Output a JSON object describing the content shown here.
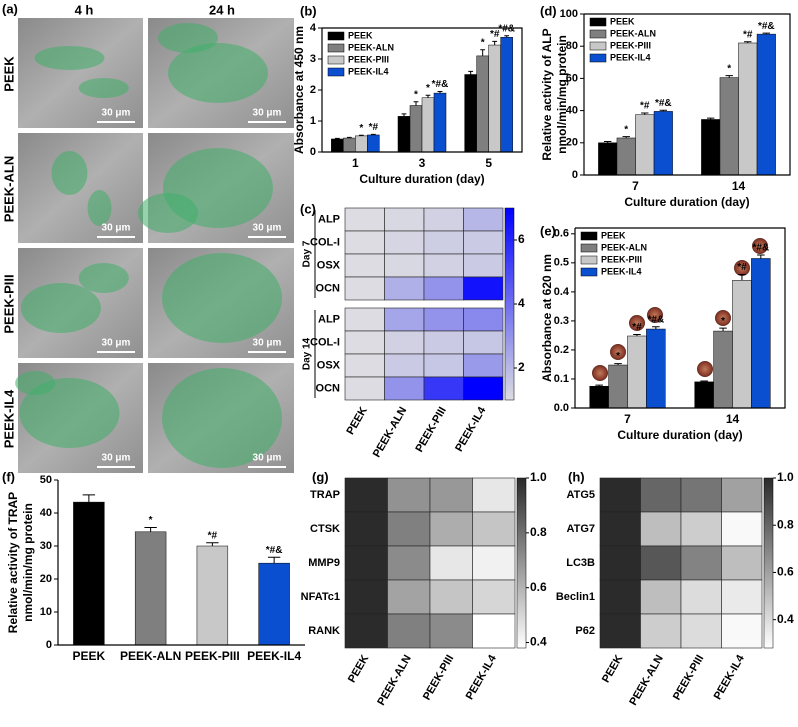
{
  "panel_a": {
    "label": "(a)",
    "columns": [
      "4 h",
      "24 h"
    ],
    "rows": [
      "PEEK",
      "PEEK-ALN",
      "PEEK-PIII",
      "PEEK-IL4"
    ],
    "scale_bar": "30 μm"
  },
  "chart_data": [
    {
      "type": "bar",
      "label": "(b)",
      "x_label": "Culture duration (day)",
      "y_label": "Absorbance at 450 nm",
      "categories": [
        "1",
        "3",
        "5"
      ],
      "ylim": [
        0,
        4
      ],
      "yticks": [
        0,
        1,
        2,
        3,
        4
      ],
      "legend": "upper-left",
      "series": [
        {
          "name": "PEEK",
          "color": "#000000",
          "values": [
            0.42,
            1.15,
            2.5
          ],
          "errors": [
            0.02,
            0.08,
            0.1
          ],
          "annotations": [
            null,
            null,
            null
          ]
        },
        {
          "name": "PEEK-ALN",
          "color": "#7f7f7f",
          "values": [
            0.45,
            1.5,
            3.1
          ],
          "errors": [
            0.02,
            0.12,
            0.2
          ],
          "annotations": [
            null,
            "*",
            "*"
          ]
        },
        {
          "name": "PEEK-PIII",
          "color": "#c8c8c8",
          "values": [
            0.52,
            1.75,
            3.45
          ],
          "errors": [
            0.02,
            0.08,
            0.12
          ],
          "annotations": [
            "*",
            "*",
            "*#"
          ]
        },
        {
          "name": "PEEK-IL4",
          "color": "#0a4fd0",
          "values": [
            0.55,
            1.9,
            3.7
          ],
          "errors": [
            0.02,
            0.05,
            0.05
          ],
          "annotations": [
            "*#",
            "*#&",
            "*#&"
          ]
        }
      ]
    },
    {
      "type": "heatmap",
      "label": "(c)",
      "columns": [
        "PEEK",
        "PEEK-ALN",
        "PEEK-PIII",
        "PEEK-IL4"
      ],
      "groups": [
        {
          "name": "Day 7",
          "rows": [
            "ALP",
            "COL-I",
            "OSX",
            "OCN"
          ],
          "values": [
            [
              1,
              1.1,
              1.3,
              2.0
            ],
            [
              1,
              1.2,
              1.4,
              1.5
            ],
            [
              1,
              1.1,
              1.3,
              1.5
            ],
            [
              1,
              2.2,
              3.0,
              6.5
            ]
          ]
        },
        {
          "name": "Day 14",
          "rows": [
            "ALP",
            "COL-I",
            "OSX",
            "OCN"
          ],
          "values": [
            [
              1,
              2.5,
              3.0,
              3.3
            ],
            [
              1,
              1.3,
              1.5,
              1.6
            ],
            [
              1,
              1.5,
              1.6,
              2.8
            ],
            [
              1,
              3.0,
              5.5,
              7.0
            ]
          ]
        }
      ],
      "clim": [
        1,
        7
      ],
      "cticks": [
        2,
        4,
        6
      ],
      "colormap": [
        "#dcdce2",
        "#0000ff"
      ]
    },
    {
      "type": "bar",
      "label": "(d)",
      "x_label": "Culture duration (day)",
      "y_label": [
        "Relative activity of ALP",
        "nmol/min/mg protein"
      ],
      "categories": [
        "7",
        "14"
      ],
      "ylim": [
        0,
        100
      ],
      "yticks": [
        0,
        20,
        40,
        60,
        80,
        100
      ],
      "legend": "upper-left",
      "series": [
        {
          "name": "PEEK",
          "color": "#000000",
          "values": [
            20,
            34.5
          ],
          "errors": [
            0.8,
            0.8
          ],
          "annotations": [
            null,
            null
          ]
        },
        {
          "name": "PEEK-ALN",
          "color": "#7f7f7f",
          "values": [
            23,
            60.5
          ],
          "errors": [
            0.8,
            1.2
          ],
          "annotations": [
            "*",
            "*"
          ]
        },
        {
          "name": "PEEK-PIII",
          "color": "#c8c8c8",
          "values": [
            37.5,
            82
          ],
          "errors": [
            1,
            0.8
          ],
          "annotations": [
            "*#",
            "*#"
          ]
        },
        {
          "name": "PEEK-IL4",
          "color": "#0a4fd0",
          "values": [
            39.5,
            87.5
          ],
          "errors": [
            0.7,
            0.6
          ],
          "annotations": [
            "*#&",
            "*#&"
          ]
        }
      ]
    },
    {
      "type": "bar",
      "label": "(e)",
      "x_label": "Culture duration (day)",
      "y_label": "Absorbance at 620 nm",
      "categories": [
        "7",
        "14"
      ],
      "ylim": [
        0,
        0.62
      ],
      "yticks": [
        {
          "value": 0,
          "label": "0.0"
        },
        0.1,
        0.2,
        0.3,
        0.4,
        0.5,
        0.6
      ],
      "legend": "upper-left",
      "series": [
        {
          "name": "PEEK",
          "color": "#000000",
          "values": [
            0.075,
            0.09
          ],
          "errors": [
            0.004,
            0.003
          ],
          "annotations": [
            null,
            null
          ]
        },
        {
          "name": "PEEK-ALN",
          "color": "#7f7f7f",
          "values": [
            0.148,
            0.265
          ],
          "errors": [
            0.005,
            0.01
          ],
          "annotations": [
            "*",
            "*"
          ]
        },
        {
          "name": "PEEK-PIII",
          "color": "#c8c8c8",
          "values": [
            0.248,
            0.44
          ],
          "errors": [
            0.005,
            0.02
          ],
          "annotations": [
            "*#",
            "*#"
          ]
        },
        {
          "name": "PEEK-IL4",
          "color": "#0a4fd0",
          "values": [
            0.272,
            0.515
          ],
          "errors": [
            0.008,
            0.012
          ],
          "annotations": [
            "*#&",
            "*#&"
          ]
        }
      ]
    },
    {
      "type": "bar",
      "label": "(f)",
      "y_label": [
        "Relative activity of TRAP",
        "nmol/min/mg protein"
      ],
      "categories": [
        "PEEK",
        "PEEK-ALN",
        "PEEK-PIII",
        "PEEK-IL4"
      ],
      "values": [
        43.3,
        34.3,
        30,
        24.8
      ],
      "errors": [
        2.2,
        1.3,
        1,
        1.8
      ],
      "colors": [
        "#000000",
        "#7f7f7f",
        "#c8c8c8",
        "#0a4fd0"
      ],
      "annotations": [
        null,
        "*",
        "*#",
        "*#&"
      ],
      "ylim": [
        0,
        50
      ],
      "yticks": [
        0,
        10,
        20,
        30,
        40,
        50
      ]
    },
    {
      "type": "heatmap",
      "label": "(g)",
      "columns": [
        "PEEK",
        "PEEK-ALN",
        "PEEK-PIII",
        "PEEK-IL4"
      ],
      "rows": [
        "TRAP",
        "CTSK",
        "MMP9",
        "NFATc1",
        "RANK"
      ],
      "values": [
        [
          1,
          0.7,
          0.68,
          0.45
        ],
        [
          1,
          0.75,
          0.62,
          0.55
        ],
        [
          1,
          0.72,
          0.45,
          0.42
        ],
        [
          1,
          0.65,
          0.55,
          0.5
        ],
        [
          1,
          0.75,
          0.72,
          0.38
        ]
      ],
      "clim": [
        0.38,
        1
      ],
      "cticks": [
        0.4,
        0.6,
        0.8,
        {
          "value": 1,
          "label": "1.0"
        }
      ],
      "colormap": [
        "#ffffff",
        "#2b2b2b"
      ]
    },
    {
      "type": "heatmap",
      "label": "(h)",
      "columns": [
        "PEEK",
        "PEEK-ALN",
        "PEEK-PIII",
        "PEEK-IL4"
      ],
      "rows": [
        "ATG5",
        "ATG7",
        "LC3B",
        "Beclin1",
        "P62"
      ],
      "values": [
        [
          1,
          0.8,
          0.75,
          0.6
        ],
        [
          1,
          0.5,
          0.45,
          0.3
        ],
        [
          1,
          0.85,
          0.7,
          0.5
        ],
        [
          1,
          0.5,
          0.4,
          0.35
        ],
        [
          1,
          0.45,
          0.4,
          0.3
        ]
      ],
      "clim": [
        0.28,
        1
      ],
      "cticks": [
        0.4,
        0.6,
        0.8,
        {
          "value": 1,
          "label": "1.0"
        }
      ],
      "colormap": [
        "#ffffff",
        "#2b2b2b"
      ]
    }
  ]
}
